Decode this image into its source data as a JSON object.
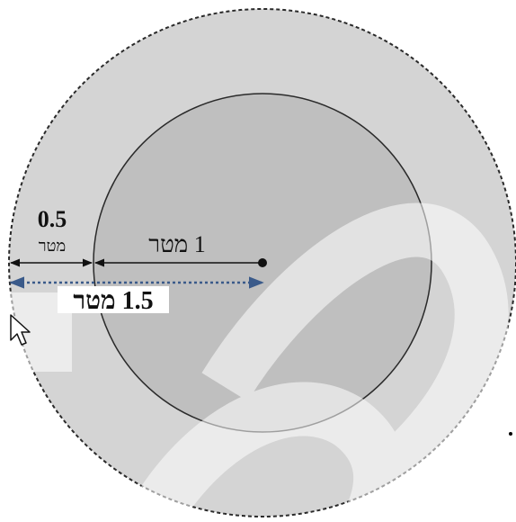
{
  "labels": {
    "outer_gap_value": "0.5",
    "outer_gap_unit": "מטר",
    "inner_radius": "1 מטר",
    "outer_radius": "1.5 מטר"
  },
  "colors": {
    "outer_fill": "#d4d4d4",
    "inner_fill": "#bfbfbf",
    "stroke": "#2a2a2a",
    "dotted_line": "#3a5a8a",
    "watermark": "#ffffff"
  },
  "icons": {
    "cursor": "mouse-pointer-icon"
  }
}
